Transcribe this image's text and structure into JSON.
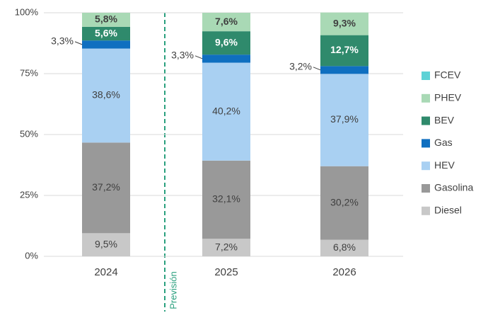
{
  "chart_data": {
    "type": "stacked_bar",
    "categories": [
      "2024",
      "2025",
      "2026"
    ],
    "series": [
      {
        "name": "Diesel",
        "color": "#c8c8c8",
        "values": [
          9.5,
          7.2,
          6.8
        ],
        "value_labels": [
          "9,5%",
          "7,2%",
          "6,8%"
        ]
      },
      {
        "name": "Gasolina",
        "color": "#999999",
        "values": [
          37.2,
          32.1,
          30.2
        ],
        "value_labels": [
          "37,2%",
          "32,1%",
          "30,2%"
        ]
      },
      {
        "name": "HEV",
        "color": "#a9d0f2",
        "values": [
          38.6,
          40.2,
          37.9
        ],
        "value_labels": [
          "38,6%",
          "40,2%",
          "37,9%"
        ]
      },
      {
        "name": "Gas",
        "color": "#0f6fc0",
        "values": [
          3.3,
          3.3,
          3.2
        ],
        "value_labels": [
          "3,3%",
          "3,3%",
          "3,2%"
        ]
      },
      {
        "name": "BEV",
        "color": "#2f8a6c",
        "values": [
          5.6,
          9.6,
          12.7
        ],
        "value_labels": [
          "5,6%",
          "9,6%",
          "12,7%"
        ]
      },
      {
        "name": "PHEV",
        "color": "#a9d9b5",
        "values": [
          5.8,
          7.6,
          9.3
        ],
        "value_labels": [
          "5,8%",
          "7,6%",
          "9,3%"
        ]
      },
      {
        "name": "FCEV",
        "color": "#5ed2d6",
        "values": [
          0,
          0,
          0
        ]
      }
    ],
    "ylim": [
      0,
      100
    ],
    "yticks": [
      {
        "value": 0,
        "label": "0%"
      },
      {
        "value": 25,
        "label": "25%"
      },
      {
        "value": 50,
        "label": "50%"
      },
      {
        "value": 75,
        "label": "75%"
      },
      {
        "value": 100,
        "label": "100%"
      }
    ],
    "grid": true,
    "legend_position": "right",
    "annotation": "Previsión"
  }
}
